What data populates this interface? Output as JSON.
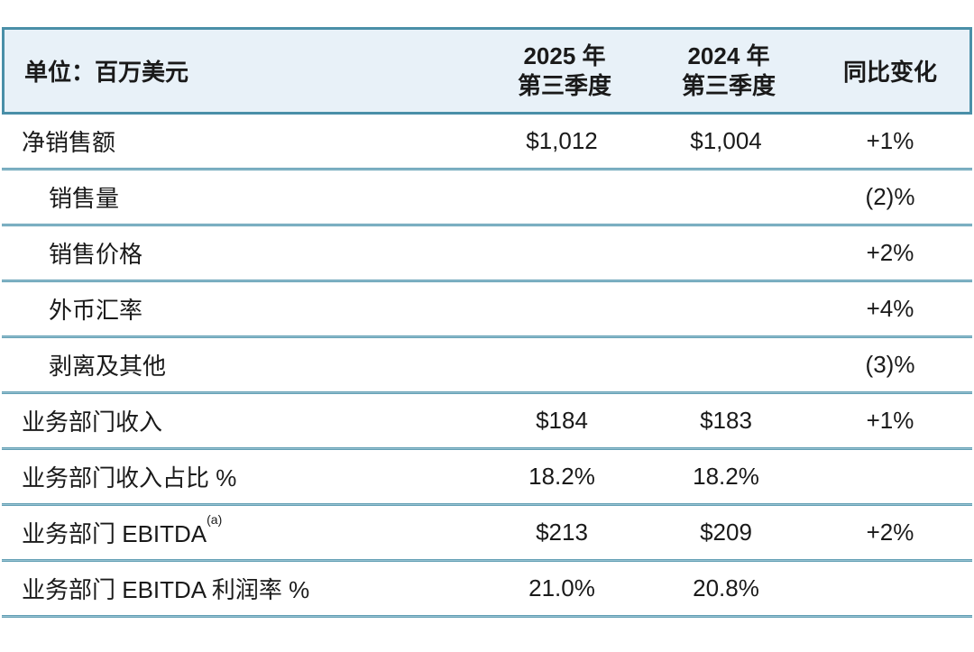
{
  "colors": {
    "header_background": "#e8f1f8",
    "divider_line": "#4a8fa8",
    "text": "#1a1a1a",
    "page_background": "#ffffff"
  },
  "table": {
    "unit_label": "单位：百万美元",
    "header": {
      "col_2025_line1": "2025 年",
      "col_2025_line2": "第三季度",
      "col_2024_line1": "2024 年",
      "col_2024_line2": "第三季度",
      "col_change": "同比变化"
    },
    "rows": [
      {
        "label": "净销售额",
        "q3_2025": "$1,012",
        "q3_2024": "$1,004",
        "yoy_change": "+1%"
      },
      {
        "label": "销售量",
        "q3_2025": "",
        "q3_2024": "",
        "yoy_change": "(2)%"
      },
      {
        "label": "销售价格",
        "q3_2025": "",
        "q3_2024": "",
        "yoy_change": "+2%"
      },
      {
        "label": "外币汇率",
        "q3_2025": "",
        "q3_2024": "",
        "yoy_change": "+4%"
      },
      {
        "label": "剥离及其他",
        "q3_2025": "",
        "q3_2024": "",
        "yoy_change": "(3)%"
      },
      {
        "label": "业务部门收入",
        "q3_2025": "$184",
        "q3_2024": "$183",
        "yoy_change": "+1%"
      },
      {
        "label": "业务部门收入占比 %",
        "q3_2025": "18.2%",
        "q3_2024": "18.2%",
        "yoy_change": ""
      },
      {
        "label": "业务部门 EBITDA",
        "label_superscript": "(a)",
        "q3_2025": "$213",
        "q3_2024": "$209",
        "yoy_change": "+2%"
      },
      {
        "label": "业务部门 EBITDA 利润率 %",
        "q3_2025": "21.0%",
        "q3_2024": "20.8%",
        "yoy_change": ""
      }
    ]
  }
}
